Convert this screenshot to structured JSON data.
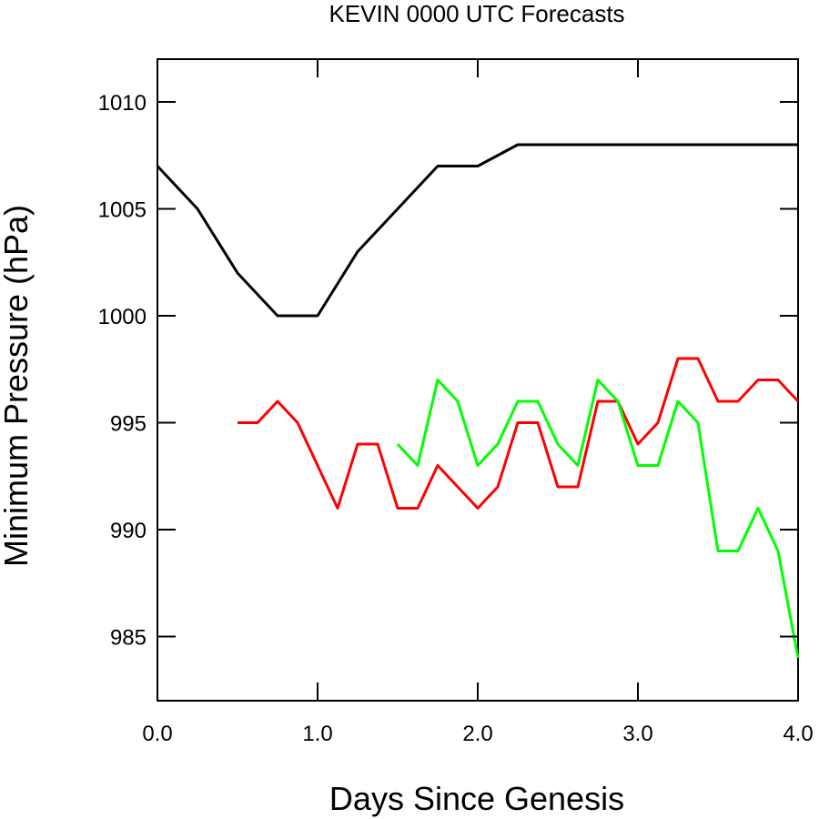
{
  "chart_data": {
    "type": "line",
    "title": "KEVIN 0000 UTC Forecasts",
    "xlabel": "Days Since Genesis",
    "ylabel": "Minimum Pressure (hPa)",
    "xlim": [
      0,
      4
    ],
    "ylim": [
      982,
      1012
    ],
    "x_ticks": [
      0,
      1,
      2,
      3,
      4
    ],
    "x_tick_labels": [
      "0.0",
      "1.0",
      "2.0",
      "3.0",
      "4.0"
    ],
    "y_ticks": [
      985,
      990,
      995,
      1000,
      1005,
      1010
    ],
    "y_tick_labels": [
      "985",
      "990",
      "995",
      "1000",
      "1005",
      "1010"
    ],
    "grid": false,
    "legend": false,
    "series": [
      {
        "color": "#000000",
        "x": [
          0,
          0.25,
          0.5,
          0.75,
          1.0,
          1.25,
          1.5,
          1.75,
          2.0,
          2.25,
          2.5,
          2.75,
          3.0,
          3.25,
          3.5,
          3.75,
          4.0
        ],
        "y": [
          1007,
          1005,
          1002,
          1000,
          1000,
          1003,
          1005,
          1007,
          1007,
          1008,
          1008,
          1008,
          1008,
          1008,
          1008,
          1008,
          1008
        ]
      },
      {
        "color": "#ff0000",
        "x": [
          0.5,
          0.625,
          0.75,
          0.875,
          1.0,
          1.125,
          1.25,
          1.375,
          1.5,
          1.625,
          1.75,
          1.875,
          2.0,
          2.125,
          2.25,
          2.375,
          2.5,
          2.625,
          2.75,
          2.875,
          3.0,
          3.125,
          3.25,
          3.375,
          3.5,
          3.625,
          3.75,
          3.875,
          4.0
        ],
        "y": [
          995,
          995,
          996,
          995,
          993,
          991,
          994,
          994,
          991,
          991,
          993,
          992,
          991,
          992,
          995,
          995,
          992,
          992,
          996,
          996,
          994,
          995,
          998,
          998,
          996,
          996,
          997,
          997,
          996
        ]
      },
      {
        "color": "#00ff00",
        "x": [
          1.5,
          1.625,
          1.75,
          1.875,
          2.0,
          2.125,
          2.25,
          2.375,
          2.5,
          2.625,
          2.75,
          2.875,
          3.0,
          3.125,
          3.25,
          3.375,
          3.5,
          3.625,
          3.75,
          3.875,
          4.0
        ],
        "y": [
          994,
          993,
          997,
          996,
          993,
          994,
          996,
          996,
          994,
          993,
          997,
          996,
          993,
          993,
          996,
          995,
          989,
          989,
          991,
          989,
          984
        ]
      }
    ]
  }
}
